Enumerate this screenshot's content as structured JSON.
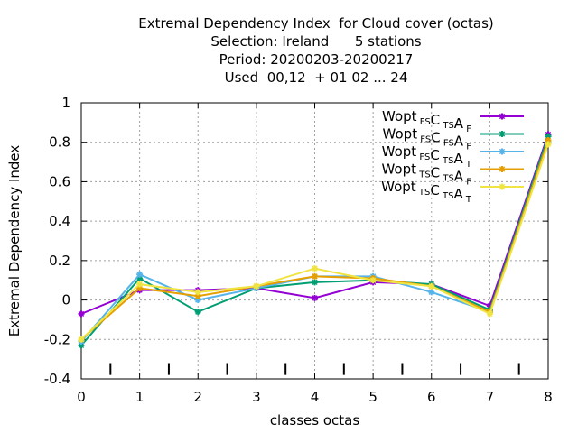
{
  "chart_data": {
    "type": "line",
    "title_lines": [
      "Extremal Dependency Index  for Cloud cover (octas)",
      "Selection: Ireland      5 stations",
      "Period: 20200203-20200217",
      "Used  00,12  + 01 02 ... 24"
    ],
    "xlabel": "classes octas",
    "ylabel": "Extremal Dependency Index",
    "x": [
      0,
      1,
      2,
      3,
      4,
      5,
      6,
      7,
      8
    ],
    "xlim": [
      0,
      8
    ],
    "ylim": [
      -0.4,
      1
    ],
    "xticks": [
      0,
      1,
      2,
      3,
      4,
      5,
      6,
      7,
      8
    ],
    "yticks": [
      -0.4,
      -0.2,
      0,
      0.2,
      0.4,
      0.6,
      0.8,
      1
    ],
    "ytick_labels": [
      "-0.4",
      "-0.2",
      "0",
      "0.2",
      "0.4",
      "0.6",
      "0.8",
      "1"
    ],
    "grid": true,
    "legend_position": "top-right",
    "series": [
      {
        "name": {
          "base1": "Wopt",
          "sub1": "FS",
          "base2": "C",
          "sub2": "TS",
          "base3": "A",
          "sub3": "F"
        },
        "color": "#9400d3",
        "values": [
          -0.07,
          0.05,
          0.05,
          0.06,
          0.01,
          0.09,
          0.08,
          -0.03,
          0.84
        ]
      },
      {
        "name": {
          "base1": "Wopt",
          "sub1": "FS",
          "base2": "C",
          "sub2": "FS",
          "base3": "A",
          "sub3": "F"
        },
        "color": "#009e73",
        "values": [
          -0.23,
          0.11,
          -0.06,
          0.06,
          0.09,
          0.1,
          0.08,
          -0.05,
          0.83
        ]
      },
      {
        "name": {
          "base1": "Wopt",
          "sub1": "FS",
          "base2": "C",
          "sub2": "TS",
          "base3": "A",
          "sub3": "T"
        },
        "color": "#56b4e9",
        "values": [
          -0.21,
          0.13,
          0.0,
          0.06,
          0.12,
          0.12,
          0.04,
          -0.06,
          0.8
        ]
      },
      {
        "name": {
          "base1": "Wopt",
          "sub1": "TS",
          "base2": "C",
          "sub2": "TS",
          "base3": "A",
          "sub3": "F"
        },
        "color": "#e69f00",
        "values": [
          -0.2,
          0.06,
          0.02,
          0.07,
          0.12,
          0.11,
          0.07,
          -0.06,
          0.81
        ]
      },
      {
        "name": {
          "base1": "Wopt",
          "sub1": "TS",
          "base2": "C",
          "sub2": "TS",
          "base3": "A",
          "sub3": "T"
        },
        "color": "#f0e442",
        "values": [
          -0.2,
          0.08,
          0.04,
          0.07,
          0.16,
          0.1,
          0.07,
          -0.07,
          0.79
        ]
      }
    ]
  }
}
